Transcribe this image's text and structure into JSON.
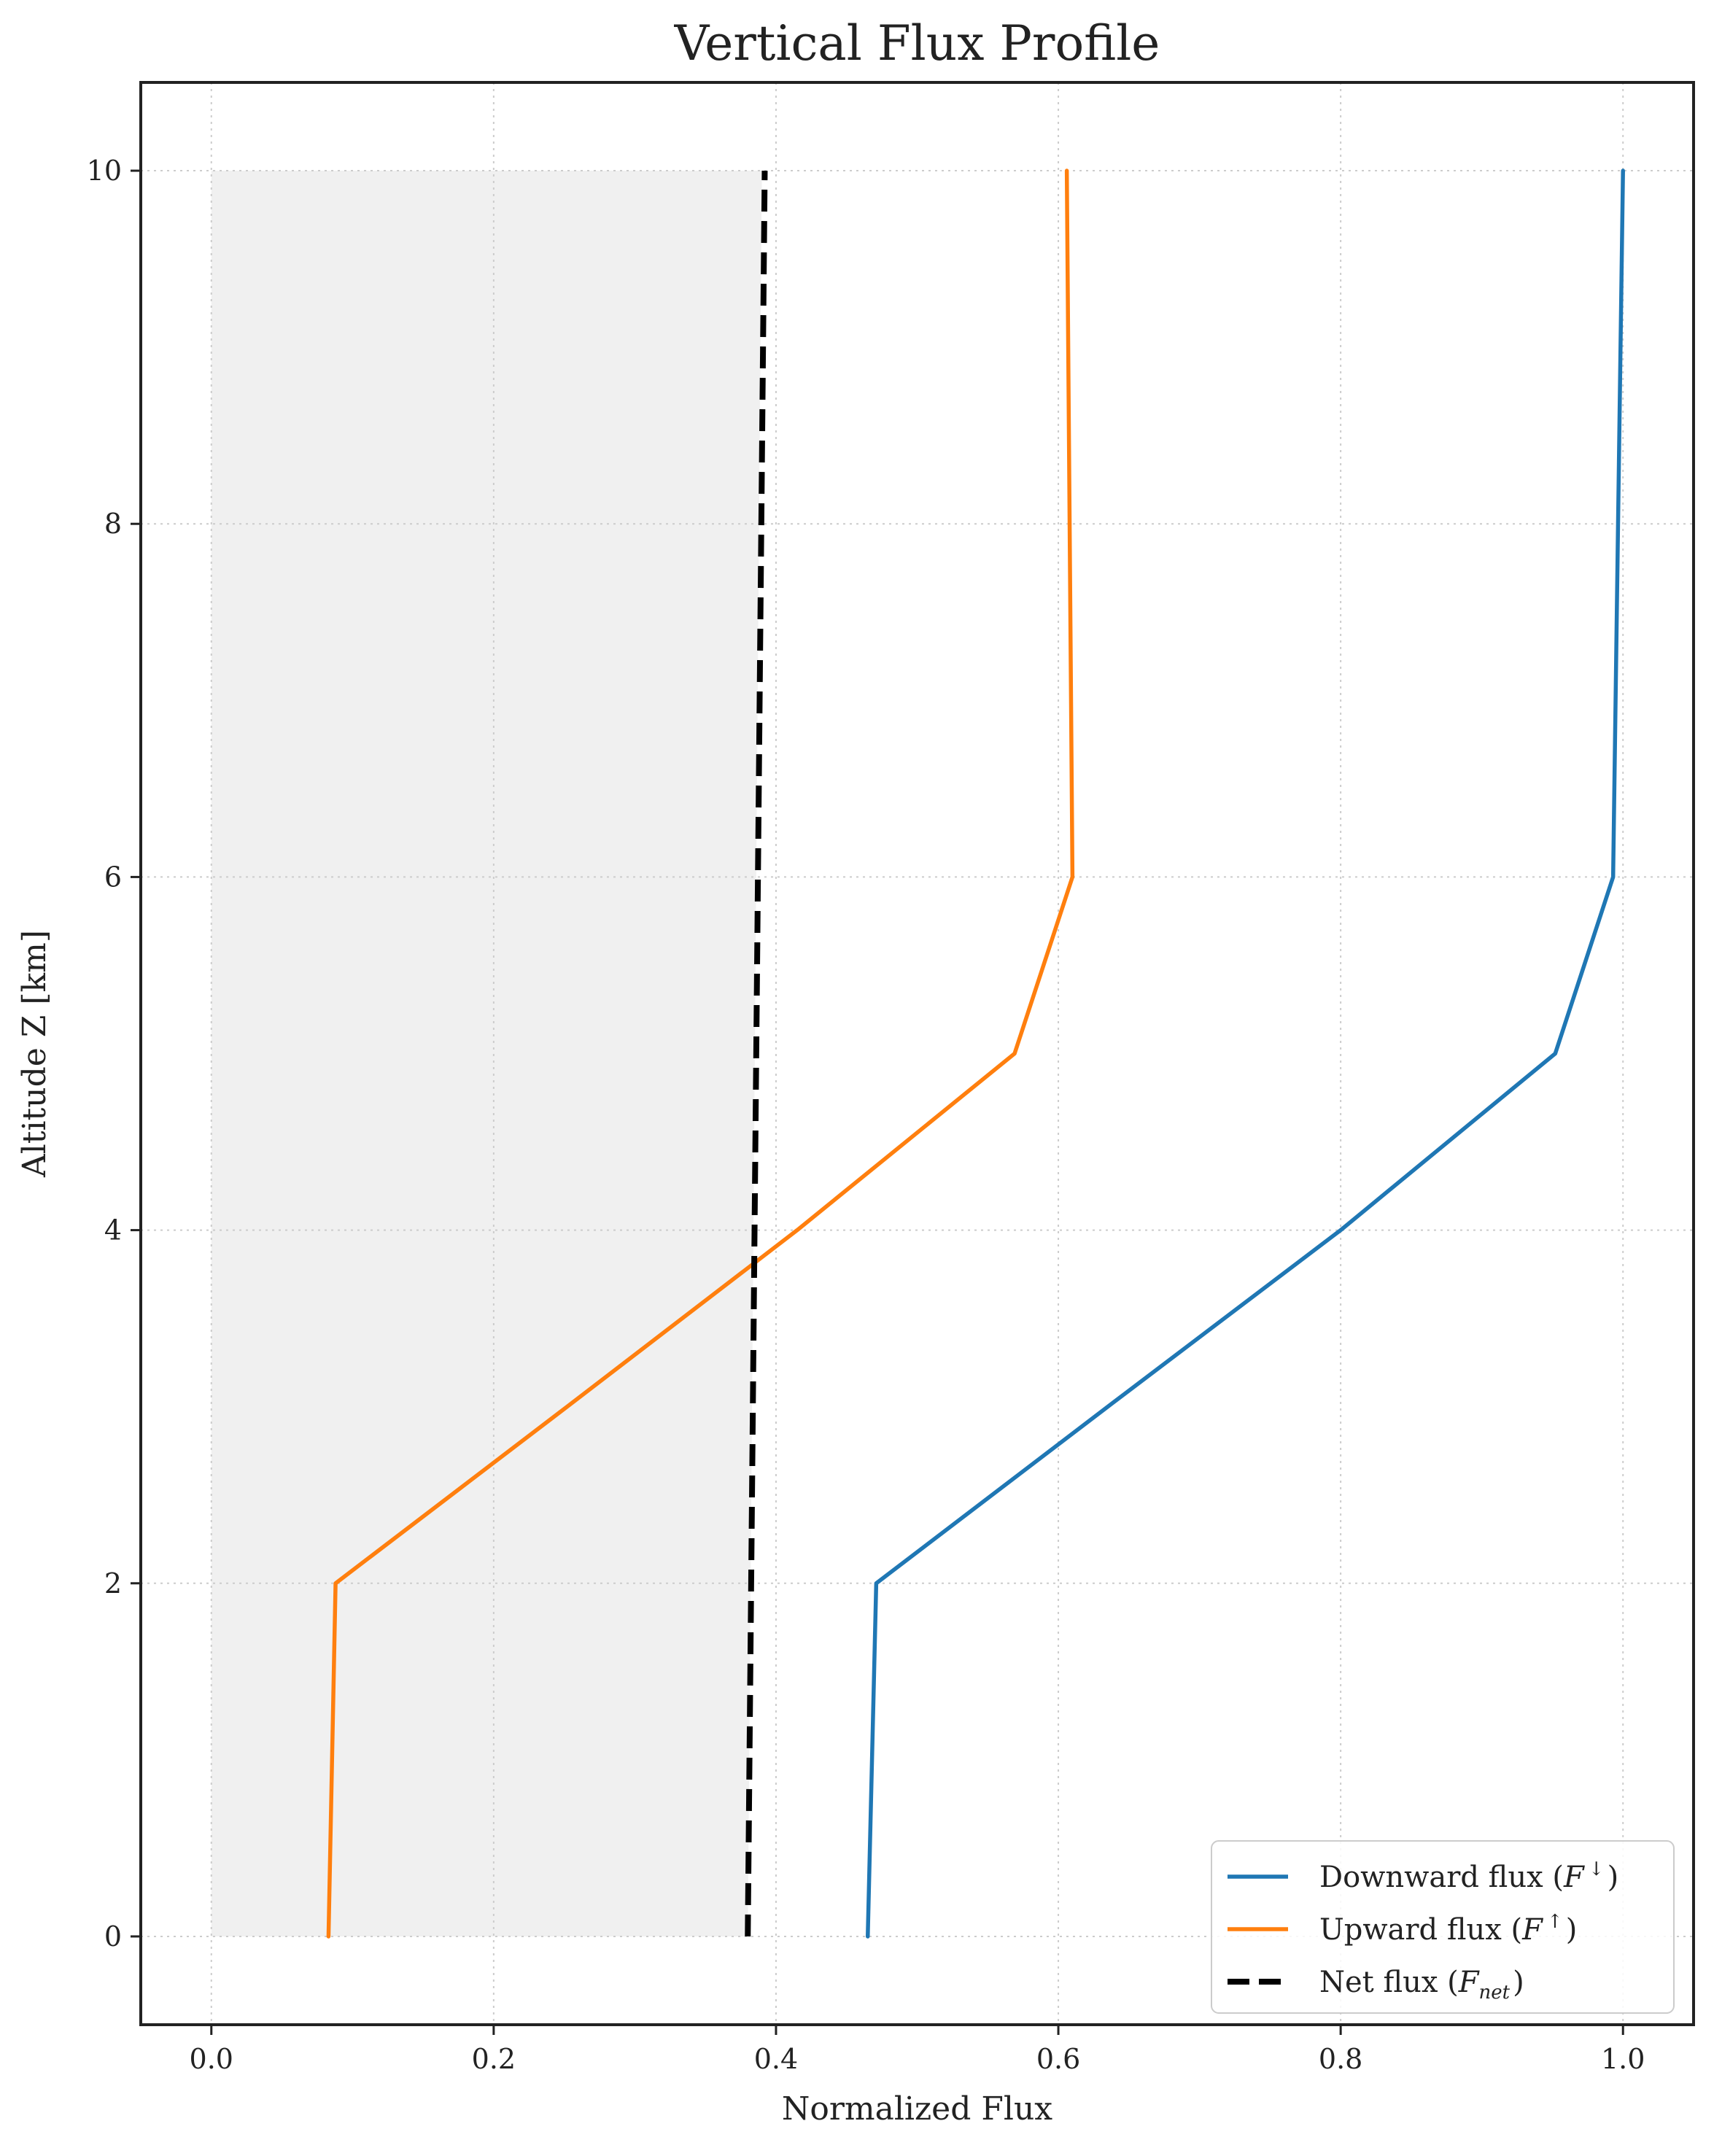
{
  "chart_data": {
    "type": "line",
    "title": "Vertical Flux Profile",
    "xlabel": "Normalized Flux",
    "ylabel": "Altitude Z [km]",
    "xlim": [
      -0.05,
      1.05
    ],
    "ylim": [
      -0.5,
      10.5
    ],
    "xticks": [
      0.0,
      0.2,
      0.4,
      0.6,
      0.8,
      1.0
    ],
    "xtick_labels": [
      "0.0",
      "0.2",
      "0.4",
      "0.6",
      "0.8",
      "1.0"
    ],
    "yticks": [
      0,
      2,
      4,
      6,
      8,
      10
    ],
    "ytick_labels": [
      "0",
      "2",
      "4",
      "6",
      "8",
      "10"
    ],
    "grid": true,
    "legend_position": "bottom-right",
    "shaded_region": {
      "x": [
        0.0,
        0.38
      ],
      "y": [
        0,
        10
      ],
      "top_x": 0.39,
      "color": "#f0f0f0"
    },
    "series": [
      {
        "name": "Downward flux (F↓)",
        "legend": {
          "text": "Downward flux (",
          "symbol": "F",
          "script": "↓",
          "script_type": "sup",
          "close": ")"
        },
        "color": "#1f77b4",
        "style": "solid",
        "x": [
          0.465,
          0.471,
          0.635,
          0.8,
          0.952,
          0.993,
          1.0
        ],
        "y": [
          0,
          2,
          3,
          4,
          5,
          6,
          10
        ]
      },
      {
        "name": "Upward flux (F↑)",
        "legend": {
          "text": "Upward flux (",
          "symbol": "F",
          "script": "↑",
          "script_type": "sup",
          "close": ")"
        },
        "color": "#ff7f0e",
        "style": "solid",
        "x": [
          0.083,
          0.088,
          0.252,
          0.415,
          0.569,
          0.61,
          0.606
        ],
        "y": [
          0,
          2,
          3,
          4,
          5,
          6,
          10
        ]
      },
      {
        "name": "Net flux (Fnet)",
        "legend": {
          "text": "Net flux (",
          "symbol": "F",
          "script": "net",
          "script_type": "sub",
          "close": ")"
        },
        "color": "#000000",
        "style": "dashed",
        "x": [
          0.38,
          0.392
        ],
        "y": [
          0,
          10
        ]
      }
    ]
  }
}
